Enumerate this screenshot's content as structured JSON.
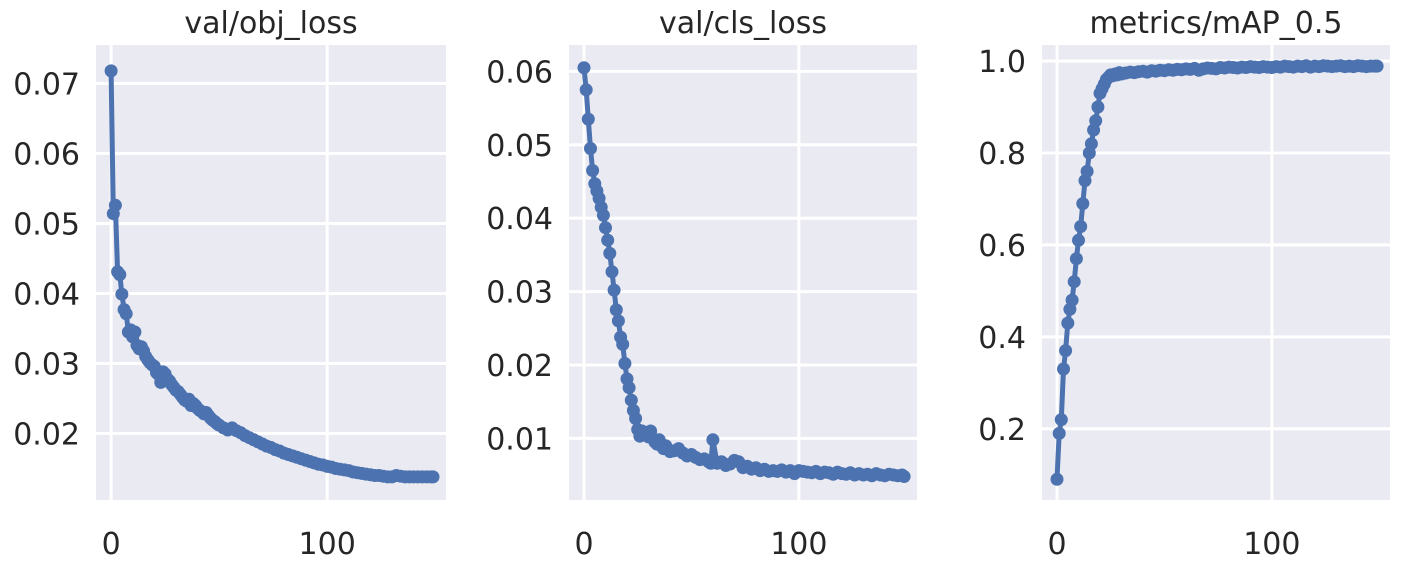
{
  "figure": {
    "series_color": "#4c72b0",
    "panel_background": "#eaeaf2",
    "grid": true
  },
  "chart_data": [
    {
      "type": "line",
      "title": "val/obj_loss",
      "xlabel": "",
      "ylabel": "",
      "xlim": [
        -7,
        155
      ],
      "ylim": [
        0.0105,
        0.0755
      ],
      "xticks": [
        0,
        100
      ],
      "xtick_labels": [
        "0",
        "100"
      ],
      "yticks": [
        0.02,
        0.03,
        0.04,
        0.05,
        0.06,
        0.07
      ],
      "ytick_labels": [
        "0.02",
        "0.03",
        "0.04",
        "0.05",
        "0.06",
        "0.07"
      ],
      "x": [
        0,
        1,
        2,
        3,
        4,
        5,
        6,
        7,
        8,
        9,
        10,
        11,
        12,
        13,
        14,
        15,
        16,
        17,
        18,
        19,
        20,
        21,
        22,
        23,
        24,
        25,
        26,
        27,
        28,
        29,
        30,
        31,
        32,
        33,
        34,
        35,
        36,
        37,
        38,
        39,
        40,
        41,
        42,
        43,
        44,
        45,
        46,
        47,
        48,
        49,
        50,
        52,
        54,
        56,
        58,
        60,
        62,
        64,
        66,
        68,
        70,
        72,
        74,
        76,
        78,
        80,
        82,
        84,
        86,
        88,
        90,
        92,
        94,
        96,
        98,
        100,
        102,
        104,
        106,
        108,
        110,
        112,
        114,
        116,
        118,
        120,
        122,
        124,
        126,
        128,
        130,
        132,
        134,
        136,
        138,
        140,
        142,
        144,
        146,
        148,
        149
      ],
      "values": [
        0.0718,
        0.0514,
        0.0526,
        0.0431,
        0.0427,
        0.0399,
        0.0377,
        0.0371,
        0.0345,
        0.0348,
        0.0338,
        0.0345,
        0.0326,
        0.0321,
        0.0324,
        0.0318,
        0.031,
        0.0305,
        0.0301,
        0.0298,
        0.0296,
        0.0287,
        0.0284,
        0.0273,
        0.0288,
        0.0285,
        0.0278,
        0.0275,
        0.027,
        0.0266,
        0.0262,
        0.026,
        0.0256,
        0.0252,
        0.0248,
        0.0246,
        0.0249,
        0.024,
        0.0243,
        0.024,
        0.0236,
        0.0233,
        0.0231,
        0.0228,
        0.023,
        0.0226,
        0.0222,
        0.0219,
        0.0217,
        0.0214,
        0.0212,
        0.0208,
        0.0205,
        0.0208,
        0.0204,
        0.0201,
        0.0197,
        0.0194,
        0.0191,
        0.0188,
        0.0185,
        0.0182,
        0.018,
        0.0177,
        0.0175,
        0.0172,
        0.017,
        0.0168,
        0.0166,
        0.0164,
        0.0162,
        0.016,
        0.0158,
        0.0156,
        0.0155,
        0.0153,
        0.0152,
        0.015,
        0.0149,
        0.0148,
        0.0147,
        0.0145,
        0.0144,
        0.0143,
        0.0142,
        0.0141,
        0.014,
        0.014,
        0.0139,
        0.0138,
        0.0138,
        0.014,
        0.0139,
        0.0138,
        0.0138,
        0.0138,
        0.0138,
        0.0138,
        0.0138,
        0.0138,
        0.0138
      ]
    },
    {
      "type": "line",
      "title": "val/cls_loss",
      "xlabel": "",
      "ylabel": "",
      "xlim": [
        -7,
        155
      ],
      "ylim": [
        0.0016,
        0.0636
      ],
      "xticks": [
        0,
        100
      ],
      "xtick_labels": [
        "0",
        "100"
      ],
      "yticks": [
        0.01,
        0.02,
        0.03,
        0.04,
        0.05,
        0.06
      ],
      "ytick_labels": [
        "0.01",
        "0.02",
        "0.03",
        "0.04",
        "0.05",
        "0.06"
      ],
      "x": [
        0,
        1,
        2,
        3,
        4,
        5,
        6,
        7,
        8,
        9,
        10,
        11,
        12,
        13,
        14,
        15,
        16,
        17,
        18,
        19,
        20,
        21,
        22,
        23,
        24,
        25,
        26,
        27,
        28,
        29,
        30,
        31,
        32,
        33,
        34,
        35,
        36,
        37,
        38,
        39,
        40,
        42,
        44,
        46,
        48,
        50,
        52,
        54,
        56,
        58,
        59,
        60,
        62,
        64,
        66,
        68,
        70,
        72,
        74,
        76,
        78,
        80,
        82,
        84,
        86,
        88,
        90,
        92,
        94,
        96,
        98,
        100,
        102,
        104,
        106,
        108,
        110,
        112,
        114,
        116,
        118,
        120,
        122,
        124,
        126,
        128,
        130,
        132,
        134,
        136,
        138,
        140,
        142,
        144,
        146,
        148,
        149
      ],
      "values": [
        0.0605,
        0.0575,
        0.0535,
        0.0495,
        0.0465,
        0.0447,
        0.0437,
        0.0427,
        0.0415,
        0.0404,
        0.0387,
        0.037,
        0.0352,
        0.0327,
        0.0302,
        0.0275,
        0.026,
        0.0238,
        0.0228,
        0.0202,
        0.0181,
        0.0169,
        0.0152,
        0.0138,
        0.0127,
        0.0112,
        0.0103,
        0.011,
        0.0105,
        0.0108,
        0.0102,
        0.011,
        0.01,
        0.0095,
        0.0092,
        0.0098,
        0.009,
        0.0086,
        0.009,
        0.0085,
        0.0082,
        0.0083,
        0.0086,
        0.008,
        0.0076,
        0.0078,
        0.0074,
        0.0071,
        0.0072,
        0.0068,
        0.0066,
        0.0098,
        0.0066,
        0.0068,
        0.0063,
        0.0065,
        0.007,
        0.0068,
        0.006,
        0.0062,
        0.0058,
        0.006,
        0.0056,
        0.0058,
        0.0055,
        0.0056,
        0.0055,
        0.0057,
        0.0054,
        0.0056,
        0.0052,
        0.0056,
        0.0055,
        0.0054,
        0.0053,
        0.0055,
        0.0052,
        0.0054,
        0.0053,
        0.0051,
        0.0054,
        0.0052,
        0.0051,
        0.0053,
        0.005,
        0.0052,
        0.005,
        0.0051,
        0.0049,
        0.0052,
        0.005,
        0.0049,
        0.0051,
        0.005,
        0.0049,
        0.005,
        0.0048
      ]
    },
    {
      "type": "line",
      "title": "metrics/mAP_0.5",
      "xlabel": "",
      "ylabel": "",
      "xlim": [
        -7,
        155
      ],
      "ylim": [
        0.045,
        1.035
      ],
      "xticks": [
        0,
        100
      ],
      "xtick_labels": [
        "0",
        "100"
      ],
      "yticks": [
        0.2,
        0.4,
        0.6,
        0.8,
        1.0
      ],
      "ytick_labels": [
        "0.2",
        "0.4",
        "0.6",
        "0.8",
        "1.0"
      ],
      "x": [
        0,
        1,
        2,
        3,
        4,
        5,
        6,
        7,
        8,
        9,
        10,
        11,
        12,
        13,
        14,
        15,
        16,
        17,
        18,
        19,
        20,
        21,
        22,
        23,
        24,
        25,
        26,
        27,
        28,
        29,
        30,
        32,
        34,
        36,
        38,
        40,
        42,
        44,
        46,
        48,
        50,
        52,
        54,
        56,
        58,
        60,
        62,
        64,
        66,
        68,
        70,
        72,
        74,
        76,
        78,
        80,
        82,
        84,
        86,
        88,
        90,
        92,
        94,
        96,
        98,
        100,
        102,
        104,
        106,
        108,
        110,
        112,
        114,
        116,
        118,
        120,
        122,
        124,
        126,
        128,
        130,
        132,
        134,
        136,
        138,
        140,
        142,
        144,
        146,
        148,
        149
      ],
      "values": [
        0.09,
        0.19,
        0.22,
        0.33,
        0.37,
        0.43,
        0.46,
        0.48,
        0.52,
        0.57,
        0.61,
        0.64,
        0.69,
        0.74,
        0.76,
        0.8,
        0.82,
        0.85,
        0.87,
        0.9,
        0.93,
        0.94,
        0.95,
        0.96,
        0.965,
        0.97,
        0.968,
        0.972,
        0.97,
        0.975,
        0.972,
        0.974,
        0.976,
        0.975,
        0.977,
        0.978,
        0.976,
        0.979,
        0.978,
        0.98,
        0.979,
        0.981,
        0.98,
        0.982,
        0.981,
        0.983,
        0.982,
        0.984,
        0.98,
        0.983,
        0.985,
        0.984,
        0.983,
        0.986,
        0.985,
        0.987,
        0.986,
        0.985,
        0.987,
        0.986,
        0.988,
        0.987,
        0.986,
        0.988,
        0.987,
        0.986,
        0.988,
        0.987,
        0.989,
        0.988,
        0.987,
        0.989,
        0.988,
        0.99,
        0.987,
        0.989,
        0.988,
        0.99,
        0.989,
        0.988,
        0.989,
        0.99,
        0.988,
        0.989,
        0.988,
        0.99,
        0.989,
        0.988,
        0.989,
        0.989,
        0.989
      ]
    }
  ]
}
